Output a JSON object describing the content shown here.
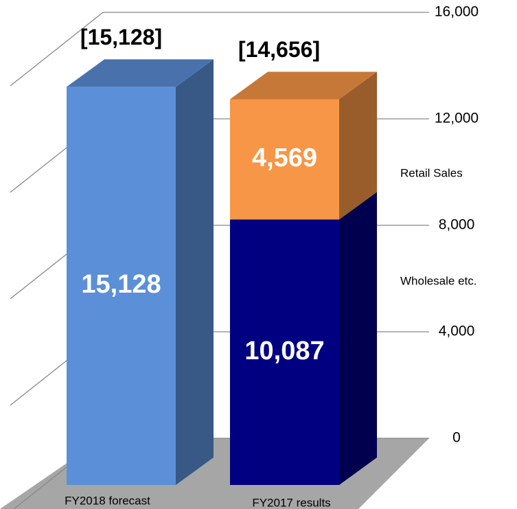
{
  "chart_data": {
    "type": "bar3d_stacked",
    "categories": [
      "FY2018 forecast",
      "FY2017 results"
    ],
    "series": [
      {
        "color": "#5b8fd8",
        "values": [
          15128,
          null
        ],
        "value_labels": [
          "15,128",
          null
        ]
      },
      {
        "name": "Wholesale etc.",
        "color": "#000080",
        "values": [
          null,
          10087
        ],
        "value_labels": [
          null,
          "10,087"
        ]
      },
      {
        "name": "Retail Sales",
        "color": "#f79646",
        "values": [
          null,
          4569
        ],
        "value_labels": [
          null,
          "4,569"
        ]
      }
    ],
    "total_labels": [
      "[15,128]",
      "[14,656]"
    ],
    "ylim": [
      0,
      16000
    ],
    "yticks": [
      0,
      {
        "value": 4000,
        "label": "4,000"
      },
      {
        "value": 8000,
        "label": "8,000"
      },
      {
        "value": 12000,
        "label": "12,000"
      },
      {
        "value": 16000,
        "label": "16,000"
      }
    ],
    "grid": true
  }
}
